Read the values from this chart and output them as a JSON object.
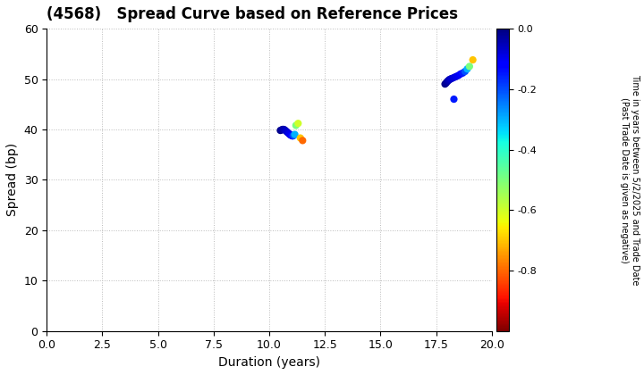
{
  "title": "(4568)   Spread Curve based on Reference Prices",
  "xlabel": "Duration (years)",
  "ylabel": "Spread (bp)",
  "colorbar_label_line1": "Time in years between 5/2/2025 and Trade Date",
  "colorbar_label_line2": "(Past Trade Date is given as negative)",
  "xlim": [
    0.0,
    20.0
  ],
  "ylim": [
    0,
    60
  ],
  "xticks": [
    0.0,
    2.5,
    5.0,
    7.5,
    10.0,
    12.5,
    15.0,
    17.5,
    20.0
  ],
  "yticks": [
    0,
    10,
    20,
    30,
    40,
    50,
    60
  ],
  "cmap": "jet_r",
  "clim": [
    -1.0,
    0.0
  ],
  "cticks": [
    0.0,
    -0.2,
    -0.4,
    -0.6,
    -0.8
  ],
  "cluster1": {
    "duration": [
      10.5,
      10.55,
      10.6,
      10.65,
      10.7,
      10.75,
      10.8,
      10.85,
      10.9,
      10.95,
      11.0,
      11.05,
      11.1,
      11.15,
      11.2,
      11.3,
      11.4,
      11.5
    ],
    "spread": [
      39.8,
      39.9,
      40.0,
      40.0,
      39.9,
      39.7,
      39.5,
      39.3,
      39.1,
      38.9,
      38.8,
      38.7,
      38.8,
      39.0,
      40.8,
      41.2,
      38.3,
      37.8
    ],
    "time": [
      -0.01,
      -0.02,
      -0.03,
      -0.04,
      -0.05,
      -0.06,
      -0.07,
      -0.08,
      -0.09,
      -0.1,
      -0.12,
      -0.15,
      -0.2,
      -0.3,
      -0.5,
      -0.6,
      -0.7,
      -0.8
    ]
  },
  "cluster2": {
    "duration": [
      17.9,
      17.95,
      18.0,
      18.05,
      18.1,
      18.15,
      18.2,
      18.3,
      18.4,
      18.5,
      18.6,
      18.7,
      18.8,
      18.9,
      19.0,
      19.15,
      18.3
    ],
    "spread": [
      49.0,
      49.2,
      49.5,
      49.7,
      49.9,
      50.0,
      50.1,
      50.3,
      50.5,
      50.7,
      51.0,
      51.2,
      51.5,
      52.0,
      52.5,
      53.8,
      46.0
    ],
    "time": [
      -0.01,
      -0.02,
      -0.03,
      -0.04,
      -0.05,
      -0.06,
      -0.07,
      -0.08,
      -0.09,
      -0.1,
      -0.12,
      -0.15,
      -0.2,
      -0.3,
      -0.5,
      -0.7,
      -0.15
    ]
  },
  "marker_size": 35,
  "background_color": "#ffffff",
  "grid_color": "#bbbbbb",
  "grid_style": "dotted",
  "title_fontsize": 12,
  "axis_fontsize": 10,
  "tick_fontsize": 9,
  "cbar_tick_fontsize": 8,
  "cbar_label_fontsize": 7
}
